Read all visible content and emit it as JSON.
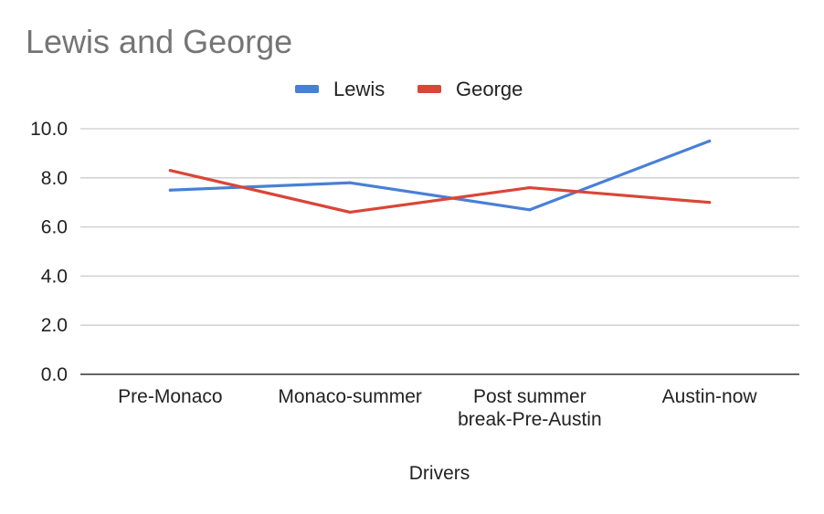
{
  "chart_data": {
    "type": "line",
    "title": "Lewis and George",
    "xlabel": "Drivers",
    "ylabel": "",
    "categories": [
      [
        "Pre-Monaco"
      ],
      [
        "Monaco-summer"
      ],
      [
        "Post summer",
        "break-Pre-Austin"
      ],
      [
        "Austin-now"
      ]
    ],
    "ylim": [
      0,
      10
    ],
    "yticks": [
      "0.0",
      "2.0",
      "4.0",
      "6.0",
      "8.0",
      "10.0"
    ],
    "ytick_values": [
      0,
      2,
      4,
      6,
      8,
      10
    ],
    "grid": true,
    "legend_position": "top-center",
    "series": [
      {
        "name": "Lewis",
        "color": "#4a7fd6",
        "values": [
          7.5,
          7.8,
          6.7,
          9.5
        ]
      },
      {
        "name": "George",
        "color": "#d94637",
        "values": [
          8.3,
          6.6,
          7.6,
          7.0
        ]
      }
    ]
  }
}
